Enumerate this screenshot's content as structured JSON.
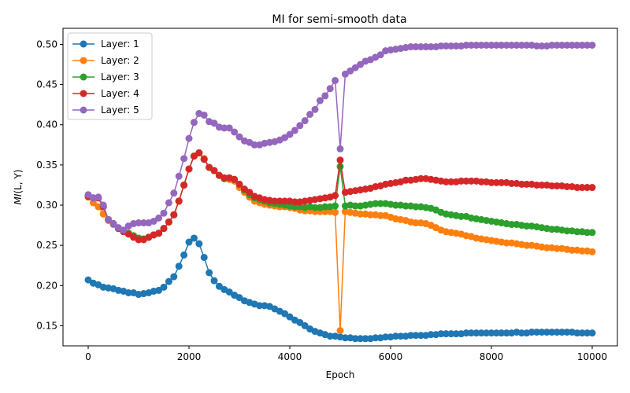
{
  "chart_data": {
    "type": "line",
    "title": "MI for semi-smooth data",
    "xlabel": "Epoch",
    "ylabel_main": "MI",
    "ylabel_args": "(L, Y)",
    "xlim": [
      -500,
      10500
    ],
    "ylim": [
      0.125,
      0.52
    ],
    "xticks": [
      0,
      2000,
      4000,
      6000,
      8000,
      10000
    ],
    "yticks": [
      0.15,
      0.2,
      0.25,
      0.3,
      0.35,
      0.4,
      0.45,
      0.5
    ],
    "xtick_labels": [
      "0",
      "2000",
      "4000",
      "6000",
      "8000",
      "10000"
    ],
    "ytick_labels": [
      "0.15",
      "0.20",
      "0.25",
      "0.30",
      "0.35",
      "0.40",
      "0.45",
      "0.50"
    ],
    "legend_position": "upper-left",
    "x": [
      0,
      100,
      200,
      300,
      400,
      500,
      600,
      700,
      800,
      900,
      1000,
      1100,
      1200,
      1300,
      1400,
      1500,
      1600,
      1700,
      1800,
      1900,
      2000,
      2100,
      2200,
      2300,
      2400,
      2500,
      2600,
      2700,
      2800,
      2900,
      3000,
      3100,
      3200,
      3300,
      3400,
      3500,
      3600,
      3700,
      3800,
      3900,
      4000,
      4100,
      4200,
      4300,
      4400,
      4500,
      4600,
      4700,
      4800,
      4900,
      5000,
      5100,
      5200,
      5300,
      5400,
      5500,
      5600,
      5700,
      5800,
      5900,
      6000,
      6100,
      6200,
      6300,
      6400,
      6500,
      6600,
      6700,
      6800,
      6900,
      7000,
      7100,
      7200,
      7300,
      7400,
      7500,
      7600,
      7700,
      7800,
      7900,
      8000,
      8100,
      8200,
      8300,
      8400,
      8500,
      8600,
      8700,
      8800,
      8900,
      9000,
      9100,
      9200,
      9300,
      9400,
      9500,
      9600,
      9700,
      9800,
      9900,
      10000
    ],
    "series": [
      {
        "name": "Layer: 1",
        "color": "#1f77b4",
        "values": [
          0.207,
          0.203,
          0.201,
          0.198,
          0.197,
          0.196,
          0.194,
          0.193,
          0.191,
          0.191,
          0.189,
          0.19,
          0.191,
          0.193,
          0.194,
          0.198,
          0.205,
          0.211,
          0.224,
          0.238,
          0.254,
          0.259,
          0.252,
          0.235,
          0.216,
          0.206,
          0.199,
          0.195,
          0.192,
          0.188,
          0.185,
          0.181,
          0.179,
          0.177,
          0.175,
          0.175,
          0.174,
          0.171,
          0.168,
          0.165,
          0.161,
          0.157,
          0.154,
          0.15,
          0.146,
          0.143,
          0.141,
          0.139,
          0.137,
          0.137,
          0.136,
          0.135,
          0.135,
          0.134,
          0.134,
          0.134,
          0.134,
          0.135,
          0.135,
          0.136,
          0.136,
          0.137,
          0.137,
          0.137,
          0.138,
          0.138,
          0.138,
          0.138,
          0.139,
          0.139,
          0.14,
          0.14,
          0.14,
          0.14,
          0.14,
          0.141,
          0.141,
          0.141,
          0.141,
          0.141,
          0.141,
          0.141,
          0.141,
          0.141,
          0.141,
          0.142,
          0.141,
          0.141,
          0.142,
          0.142,
          0.142,
          0.142,
          0.142,
          0.142,
          0.142,
          0.142,
          0.142,
          0.141,
          0.141,
          0.141,
          0.141
        ]
      },
      {
        "name": "Layer: 2",
        "color": "#ff7f0e",
        "values": [
          0.31,
          0.303,
          0.298,
          0.289,
          0.281,
          0.276,
          0.271,
          0.268,
          0.265,
          0.262,
          0.259,
          0.258,
          0.26,
          0.263,
          0.265,
          0.271,
          0.279,
          0.288,
          0.305,
          0.325,
          0.345,
          0.361,
          0.365,
          0.358,
          0.347,
          0.343,
          0.337,
          0.333,
          0.332,
          0.33,
          0.322,
          0.316,
          0.31,
          0.305,
          0.303,
          0.301,
          0.3,
          0.299,
          0.298,
          0.298,
          0.297,
          0.296,
          0.294,
          0.293,
          0.293,
          0.292,
          0.292,
          0.292,
          0.292,
          0.291,
          0.144,
          0.292,
          0.291,
          0.29,
          0.289,
          0.289,
          0.288,
          0.288,
          0.287,
          0.287,
          0.285,
          0.283,
          0.282,
          0.281,
          0.279,
          0.278,
          0.278,
          0.277,
          0.275,
          0.272,
          0.269,
          0.267,
          0.266,
          0.265,
          0.264,
          0.262,
          0.261,
          0.259,
          0.258,
          0.257,
          0.256,
          0.255,
          0.254,
          0.253,
          0.253,
          0.252,
          0.251,
          0.25,
          0.25,
          0.249,
          0.248,
          0.247,
          0.247,
          0.246,
          0.246,
          0.245,
          0.244,
          0.244,
          0.243,
          0.243,
          0.242
        ]
      },
      {
        "name": "Layer: 3",
        "color": "#2ca02c",
        "values": [
          0.311,
          0.309,
          0.309,
          0.298,
          0.282,
          0.277,
          0.271,
          0.268,
          0.265,
          0.262,
          0.259,
          0.258,
          0.26,
          0.263,
          0.265,
          0.271,
          0.279,
          0.288,
          0.305,
          0.325,
          0.345,
          0.361,
          0.365,
          0.357,
          0.347,
          0.343,
          0.337,
          0.333,
          0.334,
          0.332,
          0.326,
          0.319,
          0.313,
          0.309,
          0.307,
          0.305,
          0.303,
          0.302,
          0.301,
          0.3,
          0.299,
          0.298,
          0.298,
          0.297,
          0.298,
          0.297,
          0.297,
          0.298,
          0.298,
          0.299,
          0.348,
          0.299,
          0.3,
          0.299,
          0.299,
          0.3,
          0.301,
          0.302,
          0.302,
          0.302,
          0.301,
          0.3,
          0.3,
          0.299,
          0.299,
          0.298,
          0.298,
          0.297,
          0.296,
          0.294,
          0.291,
          0.289,
          0.288,
          0.287,
          0.286,
          0.286,
          0.284,
          0.283,
          0.282,
          0.281,
          0.28,
          0.279,
          0.278,
          0.277,
          0.276,
          0.276,
          0.275,
          0.274,
          0.274,
          0.273,
          0.272,
          0.271,
          0.27,
          0.27,
          0.269,
          0.268,
          0.268,
          0.267,
          0.267,
          0.266,
          0.266
        ]
      },
      {
        "name": "Layer: 4",
        "color": "#d62728",
        "values": [
          0.311,
          0.309,
          0.309,
          0.298,
          0.282,
          0.277,
          0.271,
          0.267,
          0.264,
          0.26,
          0.257,
          0.257,
          0.26,
          0.263,
          0.265,
          0.271,
          0.279,
          0.288,
          0.305,
          0.325,
          0.345,
          0.361,
          0.365,
          0.357,
          0.347,
          0.343,
          0.337,
          0.334,
          0.334,
          0.332,
          0.326,
          0.32,
          0.316,
          0.311,
          0.309,
          0.307,
          0.306,
          0.305,
          0.305,
          0.305,
          0.305,
          0.304,
          0.304,
          0.305,
          0.306,
          0.307,
          0.308,
          0.309,
          0.31,
          0.312,
          0.356,
          0.316,
          0.317,
          0.318,
          0.319,
          0.32,
          0.321,
          0.323,
          0.324,
          0.326,
          0.327,
          0.328,
          0.329,
          0.331,
          0.331,
          0.332,
          0.333,
          0.333,
          0.332,
          0.331,
          0.33,
          0.329,
          0.329,
          0.329,
          0.33,
          0.33,
          0.33,
          0.33,
          0.329,
          0.329,
          0.328,
          0.328,
          0.328,
          0.328,
          0.327,
          0.327,
          0.326,
          0.326,
          0.326,
          0.325,
          0.325,
          0.325,
          0.324,
          0.324,
          0.324,
          0.323,
          0.323,
          0.322,
          0.322,
          0.322,
          0.322
        ]
      },
      {
        "name": "Layer: 5",
        "color": "#9467bd",
        "values": [
          0.313,
          0.309,
          0.31,
          0.3,
          0.282,
          0.277,
          0.272,
          0.269,
          0.274,
          0.277,
          0.278,
          0.278,
          0.278,
          0.28,
          0.284,
          0.29,
          0.303,
          0.315,
          0.336,
          0.358,
          0.383,
          0.403,
          0.414,
          0.412,
          0.404,
          0.402,
          0.397,
          0.396,
          0.396,
          0.391,
          0.385,
          0.38,
          0.378,
          0.375,
          0.375,
          0.377,
          0.378,
          0.379,
          0.381,
          0.384,
          0.388,
          0.393,
          0.399,
          0.405,
          0.413,
          0.419,
          0.43,
          0.436,
          0.445,
          0.455,
          0.37,
          0.463,
          0.467,
          0.471,
          0.475,
          0.479,
          0.481,
          0.484,
          0.487,
          0.492,
          0.493,
          0.494,
          0.495,
          0.496,
          0.497,
          0.497,
          0.497,
          0.497,
          0.497,
          0.497,
          0.498,
          0.498,
          0.498,
          0.498,
          0.498,
          0.499,
          0.499,
          0.499,
          0.499,
          0.499,
          0.499,
          0.499,
          0.499,
          0.499,
          0.499,
          0.499,
          0.499,
          0.499,
          0.499,
          0.498,
          0.498,
          0.498,
          0.499,
          0.499,
          0.499,
          0.499,
          0.499,
          0.499,
          0.499,
          0.499,
          0.499
        ]
      }
    ]
  }
}
